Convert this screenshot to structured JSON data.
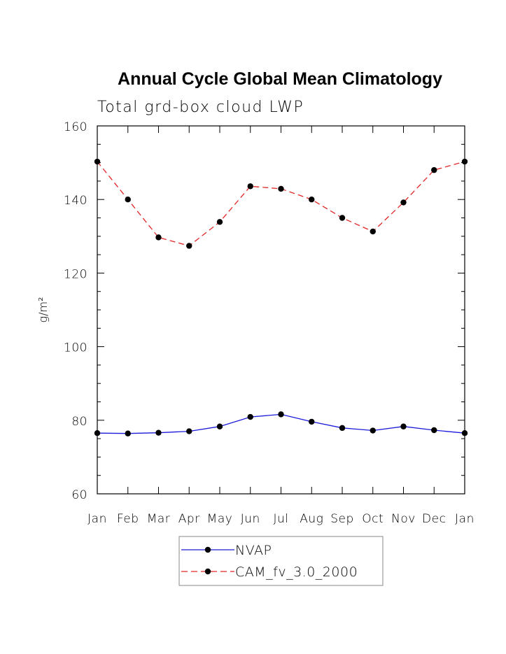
{
  "chart_data": {
    "type": "line",
    "title": "Annual Cycle Global Mean Climatology",
    "subtitle": "Total grd-box cloud LWP",
    "ylabel": "g/m²",
    "xlabel": "",
    "categories": [
      "Jan",
      "Feb",
      "Mar",
      "Apr",
      "May",
      "Jun",
      "Jul",
      "Aug",
      "Sep",
      "Oct",
      "Nov",
      "Dec",
      "Jan"
    ],
    "ylim": [
      60,
      160
    ],
    "y_ticks": [
      60,
      80,
      100,
      120,
      140,
      160
    ],
    "grid": false,
    "legend": "bottom",
    "series": [
      {
        "name": "NVAP",
        "color": "#1a1adb",
        "dash": "solid",
        "values": [
          76.5,
          76.4,
          76.6,
          77.0,
          78.3,
          80.9,
          81.6,
          79.6,
          77.9,
          77.2,
          78.3,
          77.3,
          76.5
        ]
      },
      {
        "name": "CAM_fv_3.0_2000",
        "color": "#e32626",
        "dash": "dashed",
        "values": [
          150.3,
          140.0,
          129.7,
          127.4,
          133.9,
          143.6,
          142.9,
          140.0,
          135.0,
          131.3,
          139.2,
          148.0,
          150.3
        ]
      }
    ]
  }
}
